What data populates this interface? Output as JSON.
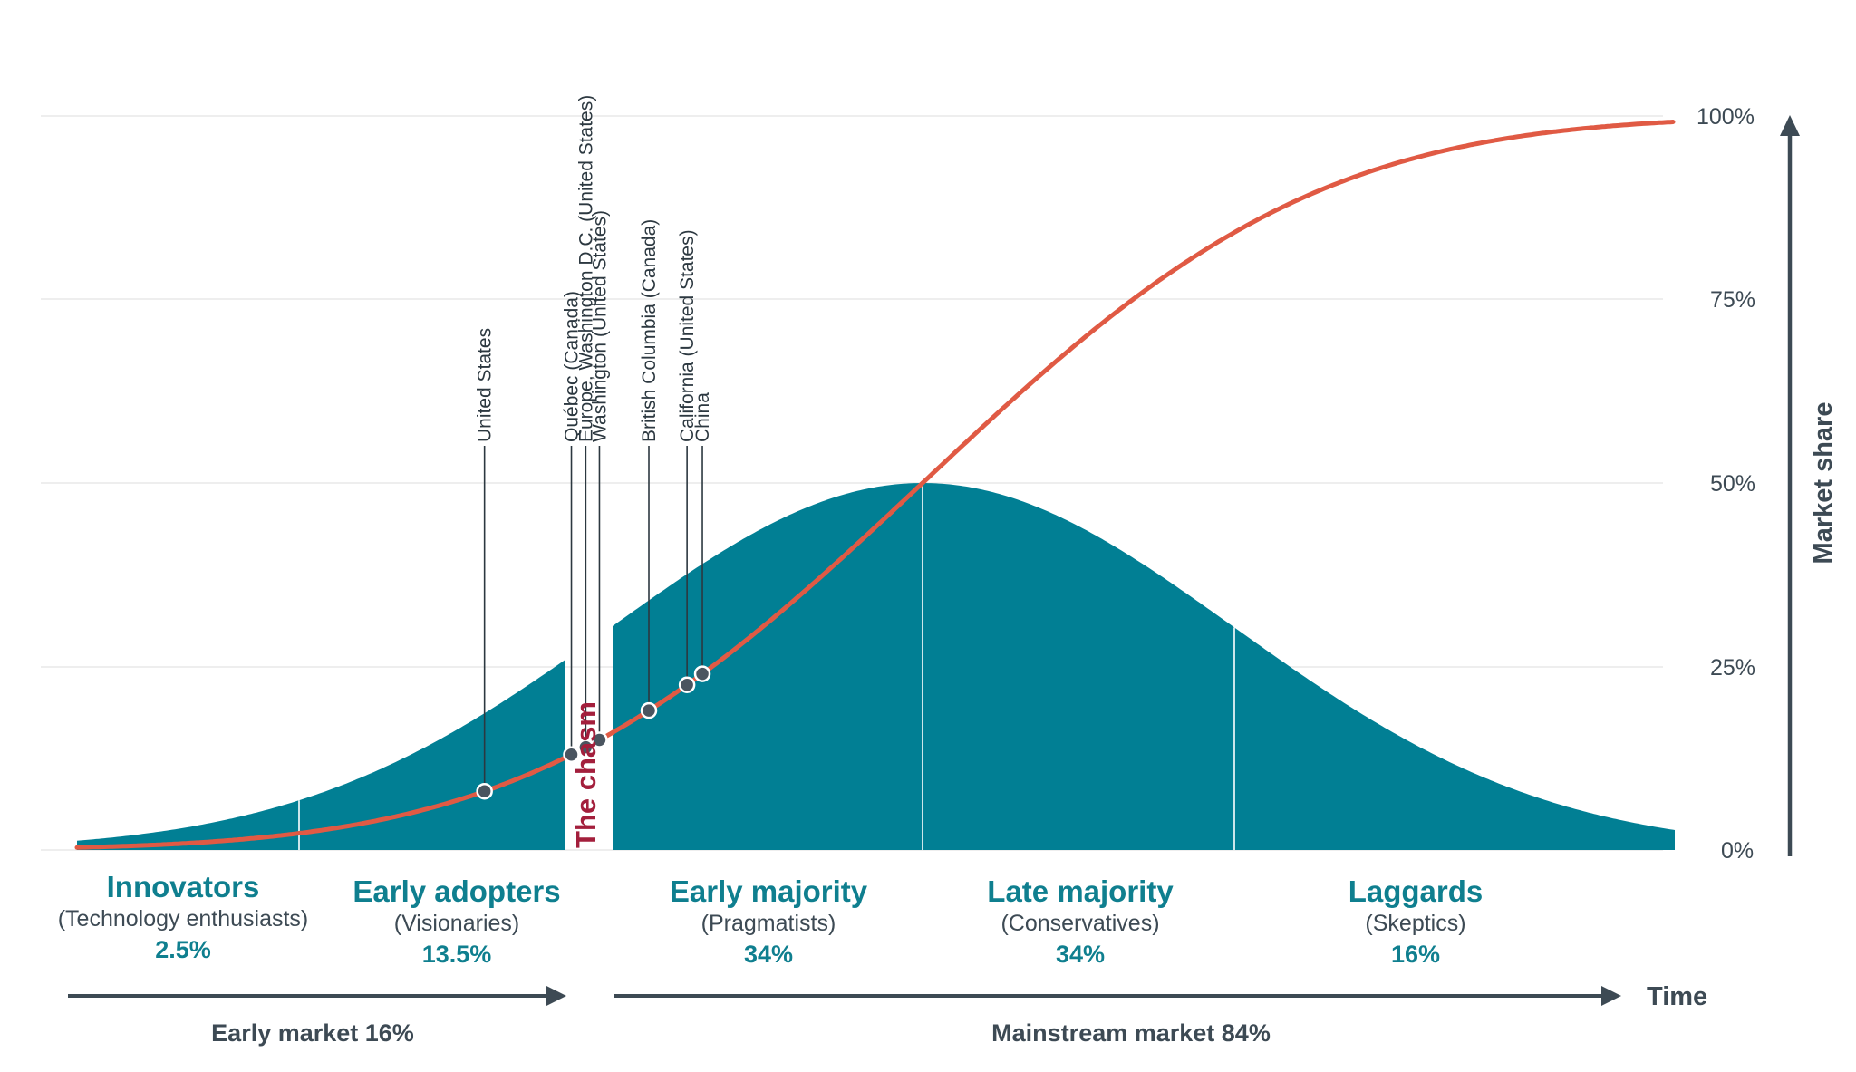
{
  "colors": {
    "bell_fill": "#017f94",
    "curve": "#e05a44",
    "chasm": "#a31f3c",
    "text_dark": "#3d4a54",
    "teal_text": "#0f7f8f"
  },
  "y_axis": {
    "label": "Market share",
    "ticks": [
      "100%",
      "75%",
      "50%",
      "25%",
      "0%"
    ]
  },
  "x_axis": {
    "label": "Time"
  },
  "chasm_label": "The chasm",
  "categories": [
    {
      "name": "Innovators",
      "sub": "(Technology enthusiasts)",
      "pct": "2.5%"
    },
    {
      "name": "Early adopters",
      "sub": "(Visionaries)",
      "pct": "13.5%"
    },
    {
      "name": "Early majority",
      "sub": "(Pragmatists)",
      "pct": "34%"
    },
    {
      "name": "Late majority",
      "sub": "(Conservatives)",
      "pct": "34%"
    },
    {
      "name": "Laggards",
      "sub": "(Skeptics)",
      "pct": "16%"
    }
  ],
  "markets": {
    "early": "Early market 16%",
    "mainstream": "Mainstream market 84%"
  },
  "annotations": [
    {
      "lines": [
        "United States"
      ],
      "share": 8
    },
    {
      "lines": [
        "Québec (Canada)"
      ],
      "share": 13
    },
    {
      "lines": [
        "Europe, Washington D.C. (United States)"
      ],
      "share": 14
    },
    {
      "lines": [
        "Washington (United States)"
      ],
      "share": 15
    },
    {
      "lines": [
        "British Columbia (Canada)"
      ],
      "share": 19
    },
    {
      "lines": [
        "California (United States)"
      ],
      "share": 22.5
    },
    {
      "lines": [
        "China"
      ],
      "share": 24
    }
  ]
}
